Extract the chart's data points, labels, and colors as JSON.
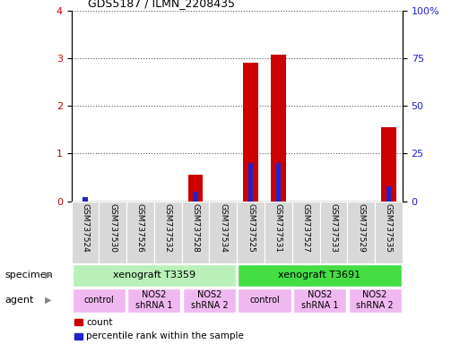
{
  "title": "GDS5187 / ILMN_2208435",
  "samples": [
    "GSM737524",
    "GSM737530",
    "GSM737526",
    "GSM737532",
    "GSM737528",
    "GSM737534",
    "GSM737525",
    "GSM737531",
    "GSM737527",
    "GSM737533",
    "GSM737529",
    "GSM737535"
  ],
  "counts": [
    0.0,
    0.0,
    0.0,
    0.0,
    0.55,
    0.0,
    2.9,
    3.07,
    0.0,
    0.0,
    0.0,
    1.55
  ],
  "percentile": [
    2.0,
    0.0,
    0.0,
    0.0,
    5.0,
    0.0,
    20.0,
    20.0,
    0.0,
    0.0,
    0.0,
    8.0
  ],
  "ylim_left": [
    0,
    4
  ],
  "ylim_right": [
    0,
    100
  ],
  "yticks_left": [
    0,
    1,
    2,
    3,
    4
  ],
  "yticks_right": [
    0,
    25,
    50,
    75,
    100
  ],
  "ytick_labels_right": [
    "0",
    "25",
    "50",
    "75",
    "100%"
  ],
  "bar_color_count": "#cc0000",
  "bar_color_pct": "#2222cc",
  "specimen_groups": [
    {
      "label": "xenograft T3359",
      "start": 0,
      "end": 6,
      "color": "#b8f0b8"
    },
    {
      "label": "xenograft T3691",
      "start": 6,
      "end": 12,
      "color": "#44dd44"
    }
  ],
  "agent_groups": [
    {
      "label": "control",
      "start": 0,
      "end": 2,
      "color": "#f0b8f0"
    },
    {
      "label": "NOS2\nshRNA 1",
      "start": 2,
      "end": 4,
      "color": "#f0b8f0"
    },
    {
      "label": "NOS2\nshRNA 2",
      "start": 4,
      "end": 6,
      "color": "#f0b8f0"
    },
    {
      "label": "control",
      "start": 6,
      "end": 8,
      "color": "#f0b8f0"
    },
    {
      "label": "NOS2\nshRNA 1",
      "start": 8,
      "end": 10,
      "color": "#f0b8f0"
    },
    {
      "label": "NOS2\nshRNA 2",
      "start": 10,
      "end": 12,
      "color": "#f0b8f0"
    }
  ],
  "legend_count_label": "count",
  "legend_pct_label": "percentile rank within the sample",
  "xlabel_specimen": "specimen",
  "xlabel_agent": "agent",
  "background_color": "#ffffff",
  "grid_color": "#555555"
}
